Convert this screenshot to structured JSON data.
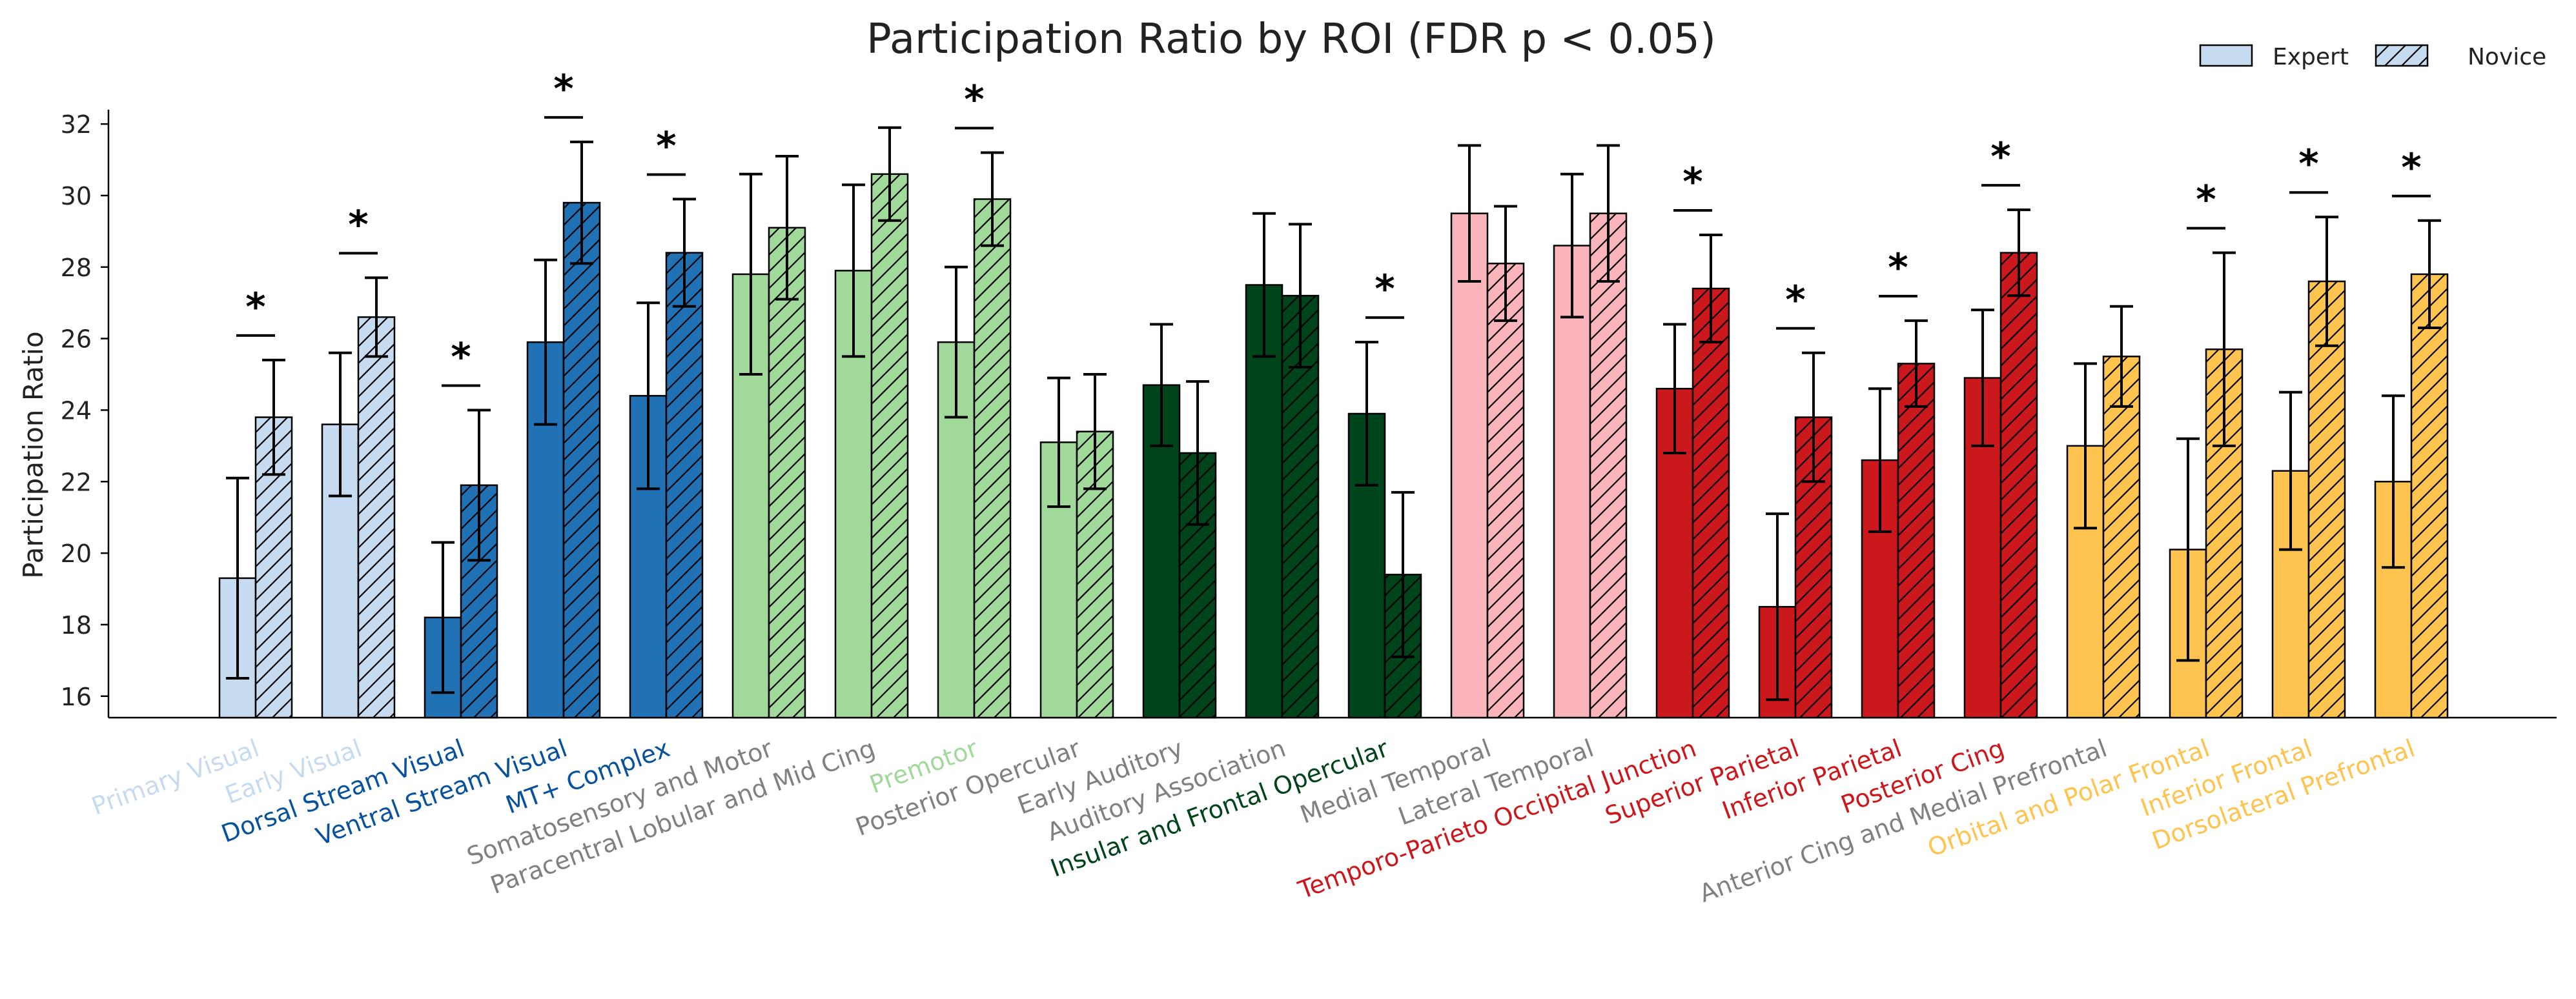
{
  "chart_data": {
    "type": "bar",
    "title": "Participation Ratio by ROI (FDR p < 0.05)",
    "xlabel": "",
    "ylabel": "Participation Ratio",
    "ylim": [
      15.4,
      32.4
    ],
    "yticks": [
      16,
      18,
      20,
      22,
      24,
      26,
      28,
      30,
      32
    ],
    "grid": false,
    "legend_position": "top-right",
    "legend": [
      {
        "label": "Expert",
        "hatch": false
      },
      {
        "label": "Novice",
        "hatch": true
      }
    ],
    "categories": [
      "Primary Visual",
      "Early Visual",
      "Dorsal Stream Visual",
      "Ventral Stream Visual",
      "MT+ Complex",
      "Somatosensory and Motor",
      "Paracentral Lobular and Mid Cing",
      "Premotor",
      "Posterior Opercular",
      "Early Auditory",
      "Auditory Association",
      "Insular and Frontal Opercular",
      "Medial Temporal",
      "Lateral Temporal",
      "Temporo-Parieto Occipital Junction",
      "Superior Parietal",
      "Inferior Parietal",
      "Posterior Cing",
      "Anterior Cing and Medial Prefrontal",
      "Orbital and Polar Frontal",
      "Inferior Frontal",
      "Dorsolateral Prefrontal"
    ],
    "bar_colors": [
      "#c6dbef",
      "#c6dbef",
      "#2171b5",
      "#2171b5",
      "#2171b5",
      "#a1d99b",
      "#a1d99b",
      "#a1d99b",
      "#a1d99b",
      "#00441b",
      "#00441b",
      "#00441b",
      "#fbb4b9",
      "#fbb4b9",
      "#cb181d",
      "#cb181d",
      "#cb181d",
      "#cb181d",
      "#fec44f",
      "#fec44f",
      "#fec44f",
      "#fec44f"
    ],
    "label_colors": [
      "#c6dbef",
      "#c6dbef",
      "#08519c",
      "#08519c",
      "#08519c",
      "#808080",
      "#808080",
      "#a1d99b",
      "#808080",
      "#808080",
      "#808080",
      "#00441b",
      "#808080",
      "#808080",
      "#cb181d",
      "#cb181d",
      "#cb181d",
      "#cb181d",
      "#808080",
      "#fec44f",
      "#fec44f",
      "#fec44f"
    ],
    "series": [
      {
        "name": "Expert",
        "values": [
          19.3,
          23.6,
          18.2,
          25.9,
          24.4,
          27.8,
          27.9,
          25.9,
          23.1,
          24.7,
          27.5,
          23.9,
          29.5,
          28.6,
          24.6,
          18.5,
          22.6,
          24.9,
          23.0,
          20.1,
          22.3,
          22.0
        ],
        "errors": [
          2.8,
          2.0,
          2.1,
          2.3,
          2.6,
          2.8,
          2.4,
          2.1,
          1.8,
          1.7,
          2.0,
          2.0,
          1.9,
          2.0,
          1.8,
          2.6,
          2.0,
          1.9,
          2.3,
          3.1,
          2.2,
          2.4
        ]
      },
      {
        "name": "Novice",
        "values": [
          23.8,
          26.6,
          21.9,
          29.8,
          28.4,
          29.1,
          30.6,
          29.9,
          23.4,
          22.8,
          27.2,
          19.4,
          28.1,
          29.5,
          27.4,
          23.8,
          25.3,
          28.4,
          25.5,
          25.7,
          27.6,
          27.8
        ],
        "errors": [
          1.6,
          1.1,
          2.1,
          1.7,
          1.5,
          2.0,
          1.3,
          1.3,
          1.6,
          2.0,
          2.0,
          2.3,
          1.6,
          1.9,
          1.5,
          1.8,
          1.2,
          1.2,
          1.4,
          2.7,
          1.8,
          1.5
        ]
      }
    ],
    "significance_marker": "*",
    "significant": [
      true,
      true,
      true,
      true,
      true,
      false,
      false,
      true,
      false,
      false,
      false,
      true,
      false,
      false,
      true,
      true,
      true,
      true,
      false,
      true,
      true,
      true
    ]
  }
}
